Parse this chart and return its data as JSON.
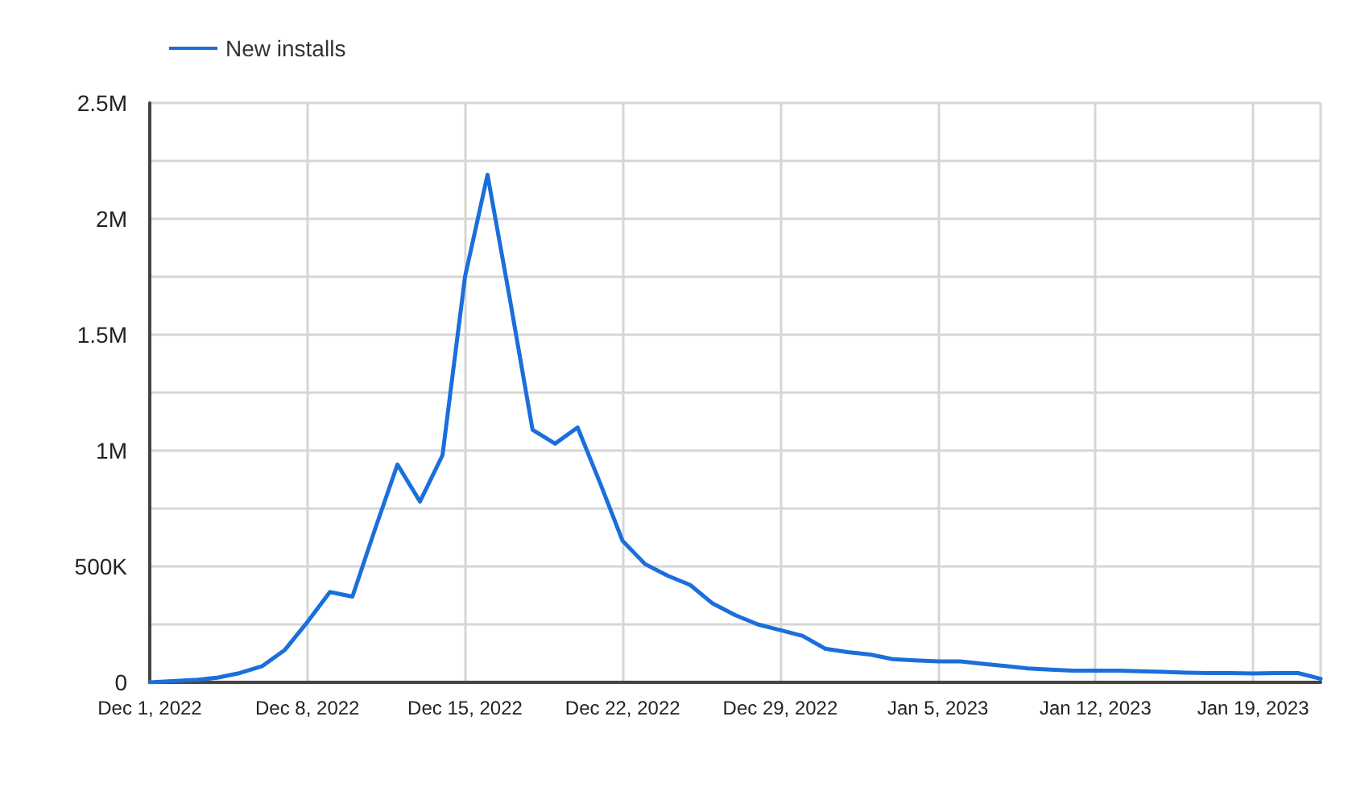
{
  "chart_data": {
    "type": "line",
    "x": [
      "2022-12-01",
      "2022-12-02",
      "2022-12-03",
      "2022-12-04",
      "2022-12-05",
      "2022-12-06",
      "2022-12-07",
      "2022-12-08",
      "2022-12-09",
      "2022-12-10",
      "2022-12-11",
      "2022-12-12",
      "2022-12-13",
      "2022-12-14",
      "2022-12-15",
      "2022-12-16",
      "2022-12-17",
      "2022-12-18",
      "2022-12-19",
      "2022-12-20",
      "2022-12-21",
      "2022-12-22",
      "2022-12-23",
      "2022-12-24",
      "2022-12-25",
      "2022-12-26",
      "2022-12-27",
      "2022-12-28",
      "2022-12-29",
      "2022-12-30",
      "2022-12-31",
      "2023-01-01",
      "2023-01-02",
      "2023-01-03",
      "2023-01-04",
      "2023-01-05",
      "2023-01-06",
      "2023-01-07",
      "2023-01-08",
      "2023-01-09",
      "2023-01-10",
      "2023-01-11",
      "2023-01-12",
      "2023-01-13",
      "2023-01-14",
      "2023-01-15",
      "2023-01-16",
      "2023-01-17",
      "2023-01-18",
      "2023-01-19",
      "2023-01-20",
      "2023-01-21",
      "2023-01-22"
    ],
    "series": [
      {
        "name": "New installs",
        "color": "#1a6fdb",
        "values": [
          0,
          5000,
          10000,
          20000,
          40000,
          70000,
          140000,
          260000,
          390000,
          370000,
          660000,
          940000,
          780000,
          980000,
          1750000,
          2190000,
          1650000,
          1090000,
          1030000,
          1100000,
          860000,
          610000,
          510000,
          460000,
          420000,
          340000,
          290000,
          250000,
          225000,
          200000,
          145000,
          130000,
          120000,
          100000,
          95000,
          90000,
          90000,
          80000,
          70000,
          60000,
          55000,
          50000,
          50000,
          50000,
          48000,
          45000,
          42000,
          40000,
          40000,
          38000,
          40000,
          40000,
          15000
        ]
      }
    ],
    "xlim": [
      "2022-12-01",
      "2023-01-22"
    ],
    "xticks": [
      {
        "value": "2022-12-01",
        "label": "Dec 1, 2022"
      },
      {
        "value": "2022-12-08",
        "label": "Dec 8, 2022"
      },
      {
        "value": "2022-12-15",
        "label": "Dec 15, 2022"
      },
      {
        "value": "2022-12-22",
        "label": "Dec 22, 2022"
      },
      {
        "value": "2022-12-29",
        "label": "Dec 29, 2022"
      },
      {
        "value": "2023-01-05",
        "label": "Jan 5, 2023"
      },
      {
        "value": "2023-01-12",
        "label": "Jan 12, 2023"
      },
      {
        "value": "2023-01-19",
        "label": "Jan 19, 2023"
      }
    ],
    "ylim": [
      0,
      2500000
    ],
    "yticks": [
      0,
      {
        "value": 250000,
        "label": null
      },
      {
        "value": 500000,
        "label": "500K"
      },
      {
        "value": 750000,
        "label": null
      },
      {
        "value": 1000000,
        "label": "1M"
      },
      {
        "value": 1250000,
        "label": null
      },
      {
        "value": 1500000,
        "label": "1.5M"
      },
      {
        "value": 1750000,
        "label": null
      },
      {
        "value": 2000000,
        "label": "2M"
      },
      {
        "value": 2250000,
        "label": null
      },
      {
        "value": 2500000,
        "label": "2.5M"
      }
    ],
    "grid": true,
    "legend": "top left",
    "marker": "none",
    "line_style": "solid"
  }
}
